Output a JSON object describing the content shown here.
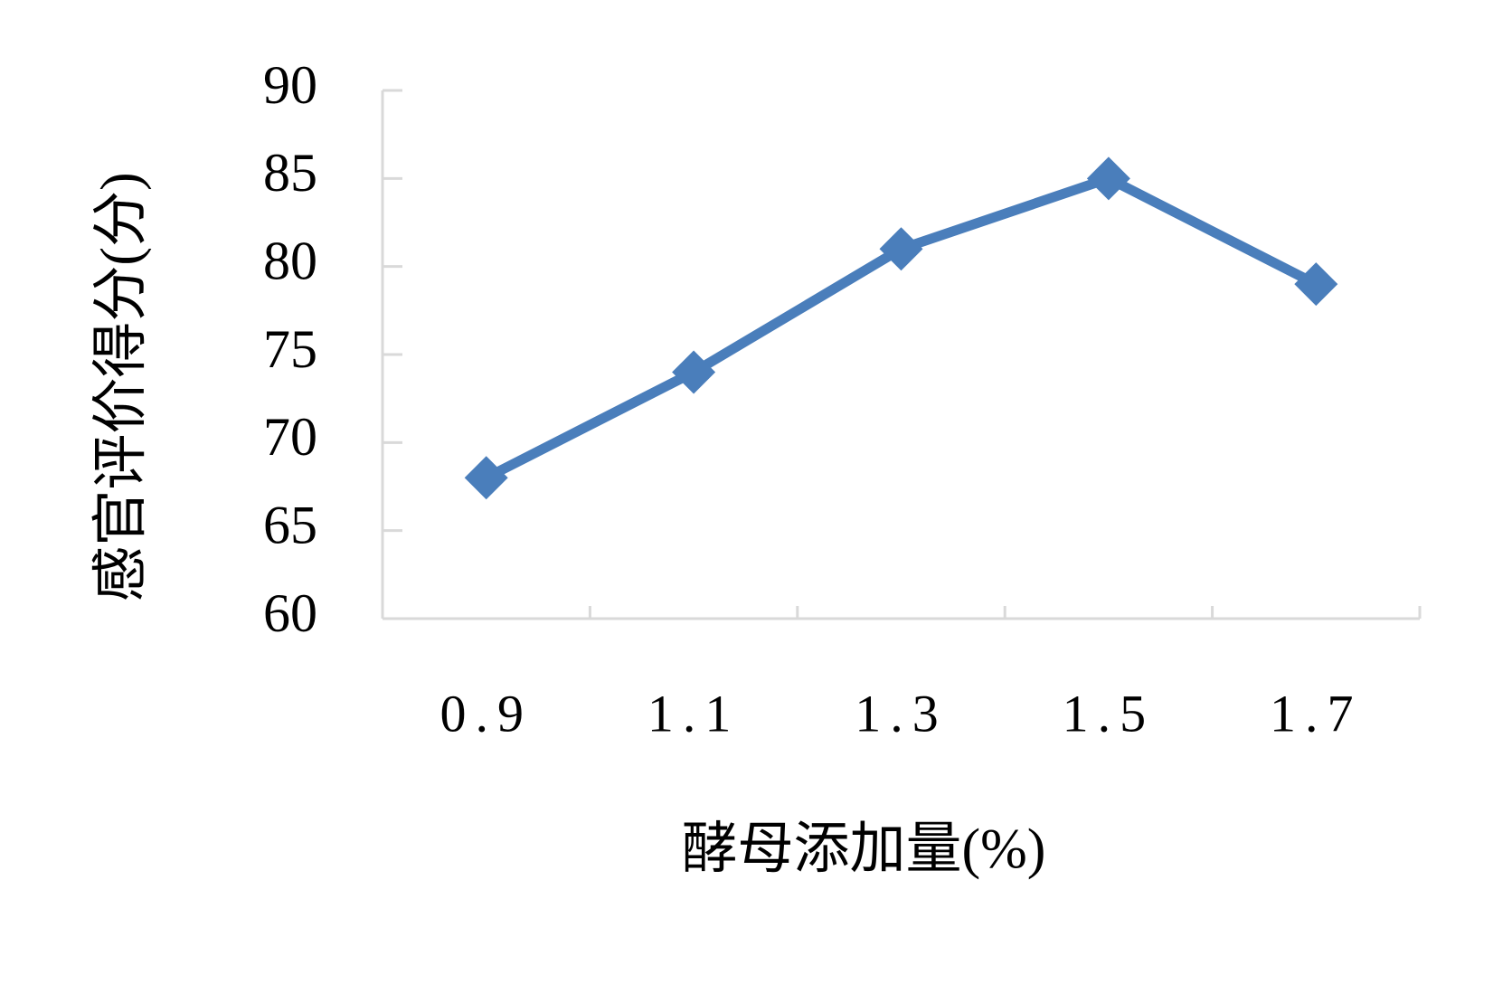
{
  "chart_data": {
    "type": "line",
    "x_label": "酵母添加量(%)",
    "y_label": "感官评价得分(分)",
    "categories": [
      "0.9",
      "1.1",
      "1.3",
      "1.5",
      "1.7"
    ],
    "values": [
      68,
      74,
      81,
      85,
      79
    ],
    "color": "#4a7ebb",
    "marker": "diamond",
    "ylim": [
      60,
      90
    ],
    "yticks": [
      60,
      65,
      70,
      75,
      80,
      85,
      90
    ],
    "grid": false
  }
}
